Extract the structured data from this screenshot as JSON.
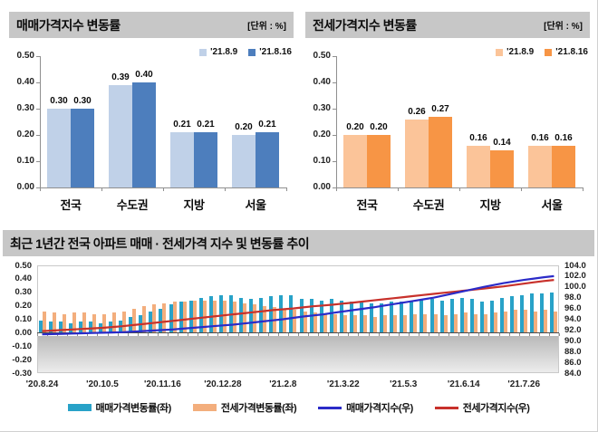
{
  "panels": {
    "sale": {
      "title": "매매가격지수 변동률",
      "unit": "[단위 : %]"
    },
    "jeonse": {
      "title": "전세가격지수 변동률",
      "unit": "[단위 : %]"
    },
    "trend": {
      "title": "최근 1년간 전국 아파트 매매 · 전세가격 지수 및 변동률 추이"
    }
  },
  "legend_trend": [
    {
      "name": "매매가격변동률(좌)",
      "type": "bar",
      "color": "#28a2c8"
    },
    {
      "name": "전세가격변동률(좌)",
      "type": "bar",
      "color": "#f3ae7d"
    },
    {
      "name": "매매가격지수(우)",
      "type": "line",
      "color": "#2b2bc8"
    },
    {
      "name": "전세가격지수(우)",
      "type": "line",
      "color": "#c8312b"
    }
  ],
  "chart_data": [
    {
      "id": "sale",
      "type": "bar",
      "title": "매매가격지수 변동률",
      "unit": "[단위 : %]",
      "categories": [
        "전국",
        "수도권",
        "지방",
        "서울"
      ],
      "series": [
        {
          "name": "'21.8.9",
          "color": "#c0d1e8",
          "values": [
            0.3,
            0.39,
            0.21,
            0.2
          ]
        },
        {
          "name": "'21.8.16",
          "color": "#4d7ebd",
          "values": [
            0.3,
            0.4,
            0.21,
            0.21
          ]
        }
      ],
      "ylim": [
        0,
        0.5
      ],
      "yticks": [
        "0.50",
        "0.40",
        "0.30",
        "0.20",
        "0.10",
        "0.00"
      ],
      "legend_position": "top-right",
      "grid": false
    },
    {
      "id": "jeonse",
      "type": "bar",
      "title": "전세가격지수 변동률",
      "unit": "[단위 : %]",
      "categories": [
        "전국",
        "수도권",
        "지방",
        "서울"
      ],
      "series": [
        {
          "name": "'21.8.9",
          "color": "#fbc499",
          "values": [
            0.2,
            0.26,
            0.16,
            0.16
          ]
        },
        {
          "name": "'21.8.16",
          "color": "#f79545",
          "values": [
            0.2,
            0.27,
            0.14,
            0.16
          ]
        }
      ],
      "ylim": [
        0,
        0.5
      ],
      "yticks": [
        "0.50",
        "0.40",
        "0.30",
        "0.20",
        "0.10",
        "0.00"
      ],
      "legend_position": "top-right",
      "grid": false
    },
    {
      "id": "trend",
      "type": "bar+line",
      "title": "최근 1년간 전국 아파트 매매 · 전세가격 지수 및 변동률 추이",
      "left_ylim": [
        -0.3,
        0.5
      ],
      "right_ylim": [
        84,
        104
      ],
      "left_yticks": [
        "0.50",
        "0.40",
        "0.30",
        "0.20",
        "0.10",
        "0.00",
        "-0.10",
        "-0.20",
        "-0.30"
      ],
      "right_yticks": [
        "104.0",
        "102.0",
        "100.0",
        "98.0",
        "96.0",
        "94.0",
        "92.0",
        "90.0",
        "88.0",
        "86.0",
        "84.0"
      ],
      "x_labels": [
        "'20.8.24",
        "'20.10.5",
        "'20.11.16",
        "'20.12.28",
        "'21.2.8",
        "'21.3.22",
        "'21.5.3",
        "'21.6.14",
        "'21.7.26"
      ],
      "x_label_weeks": [
        0,
        6,
        12,
        18,
        24,
        30,
        36,
        42,
        48
      ],
      "grid": false,
      "legend_position": "bottom",
      "series": [
        {
          "name": "매매가격변동률(좌)",
          "kind": "bar",
          "axis": "left",
          "color": "#28a2c8",
          "values": [
            0.09,
            0.08,
            0.08,
            0.07,
            0.08,
            0.08,
            0.07,
            0.08,
            0.09,
            0.12,
            0.13,
            0.16,
            0.18,
            0.21,
            0.23,
            0.24,
            0.26,
            0.27,
            0.28,
            0.28,
            0.26,
            0.25,
            0.26,
            0.27,
            0.28,
            0.28,
            0.25,
            0.25,
            0.24,
            0.25,
            0.24,
            0.23,
            0.23,
            0.22,
            0.22,
            0.23,
            0.23,
            0.24,
            0.25,
            0.25,
            0.24,
            0.25,
            0.26,
            0.25,
            0.23,
            0.24,
            0.26,
            0.27,
            0.28,
            0.29,
            0.29,
            0.3
          ]
        },
        {
          "name": "전세가격변동률(좌)",
          "kind": "bar",
          "axis": "left",
          "color": "#f3ae7d",
          "values": [
            0.16,
            0.15,
            0.14,
            0.15,
            0.15,
            0.14,
            0.14,
            0.15,
            0.16,
            0.18,
            0.2,
            0.21,
            0.22,
            0.23,
            0.23,
            0.24,
            0.24,
            0.24,
            0.24,
            0.23,
            0.22,
            0.21,
            0.2,
            0.19,
            0.18,
            0.17,
            0.16,
            0.15,
            0.14,
            0.14,
            0.13,
            0.13,
            0.13,
            0.12,
            0.13,
            0.13,
            0.13,
            0.14,
            0.14,
            0.14,
            0.13,
            0.14,
            0.15,
            0.14,
            0.14,
            0.15,
            0.16,
            0.17,
            0.17,
            0.16,
            0.17,
            0.16
          ]
        },
        {
          "name": "매매가격지수(우)",
          "kind": "line",
          "axis": "right",
          "color": "#2b2bc8",
          "values": [
            91.2,
            91.25,
            91.3,
            91.35,
            91.4,
            91.45,
            91.5,
            91.55,
            91.6,
            91.7,
            91.8,
            91.9,
            92.0,
            92.1,
            92.25,
            92.4,
            92.55,
            92.7,
            92.85,
            93.0,
            93.2,
            93.4,
            93.6,
            93.8,
            94.0,
            94.25,
            94.5,
            94.7,
            94.9,
            95.2,
            95.45,
            95.7,
            95.95,
            96.2,
            96.5,
            96.8,
            97.1,
            97.4,
            97.7,
            98.0,
            98.4,
            98.8,
            99.2,
            99.6,
            100.0,
            100.35,
            100.7,
            101.0,
            101.3,
            101.55,
            101.8,
            102.0
          ]
        },
        {
          "name": "전세가격지수(우)",
          "kind": "line",
          "axis": "right",
          "color": "#c8312b",
          "values": [
            91.8,
            91.9,
            92.0,
            92.1,
            92.2,
            92.3,
            92.4,
            92.55,
            92.7,
            92.9,
            93.1,
            93.3,
            93.5,
            93.7,
            93.9,
            94.1,
            94.3,
            94.5,
            94.7,
            94.9,
            95.1,
            95.3,
            95.5,
            95.7,
            95.85,
            96.0,
            96.2,
            96.4,
            96.55,
            96.7,
            96.9,
            97.1,
            97.3,
            97.5,
            97.7,
            97.9,
            98.1,
            98.3,
            98.5,
            98.7,
            98.9,
            99.1,
            99.3,
            99.5,
            99.7,
            99.9,
            100.1,
            100.35,
            100.6,
            100.85,
            101.1,
            101.3
          ]
        }
      ]
    }
  ],
  "colors": {
    "header_bg": "#c7c7c7",
    "axis": "#8f8f8f",
    "zero_line": "#4a4a4a",
    "below_zero_fill_top": "#b9b9b9",
    "below_zero_fill_bottom": "#ececec"
  }
}
